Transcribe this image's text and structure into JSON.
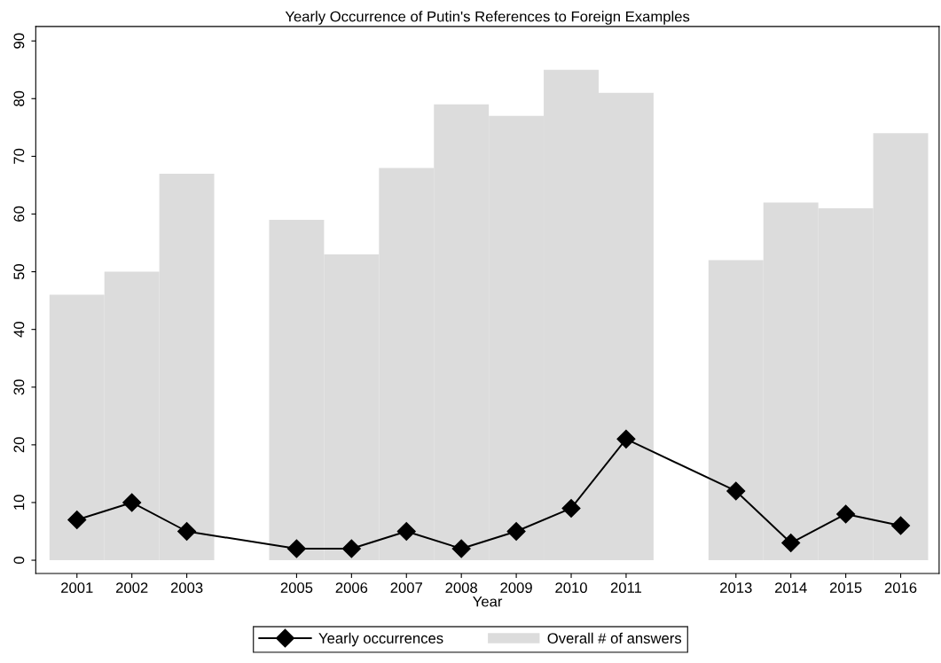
{
  "chart_data": {
    "type": "bar",
    "title": "Yearly Occurrence of Putin's References to Foreign Examples",
    "xlabel": "Year",
    "x": [
      2001,
      2002,
      2003,
      2005,
      2006,
      2007,
      2008,
      2009,
      2010,
      2011,
      2013,
      2014,
      2015,
      2016
    ],
    "series": [
      {
        "name": "Yearly occurrences",
        "type": "line",
        "color": "#000000",
        "marker": "diamond",
        "values": [
          7,
          10,
          5,
          2,
          2,
          5,
          2,
          5,
          9,
          21,
          12,
          3,
          8,
          6
        ]
      },
      {
        "name": "Overall # of answers",
        "color": "#dcdcdc",
        "values": [
          46,
          50,
          67,
          59,
          53,
          68,
          79,
          77,
          85,
          81,
          52,
          62,
          61,
          74
        ]
      }
    ],
    "xlim": [
      2000.25,
      2016.7
    ],
    "xticks": [
      2001,
      2002,
      2003,
      2005,
      2006,
      2007,
      2008,
      2009,
      2010,
      2011,
      2013,
      2014,
      2015,
      2016
    ],
    "ylim": [
      -2.3,
      92.5
    ],
    "yticks": [
      0,
      10,
      20,
      30,
      40,
      50,
      60,
      70,
      80,
      90
    ],
    "grid": false,
    "legend": "bottom"
  }
}
